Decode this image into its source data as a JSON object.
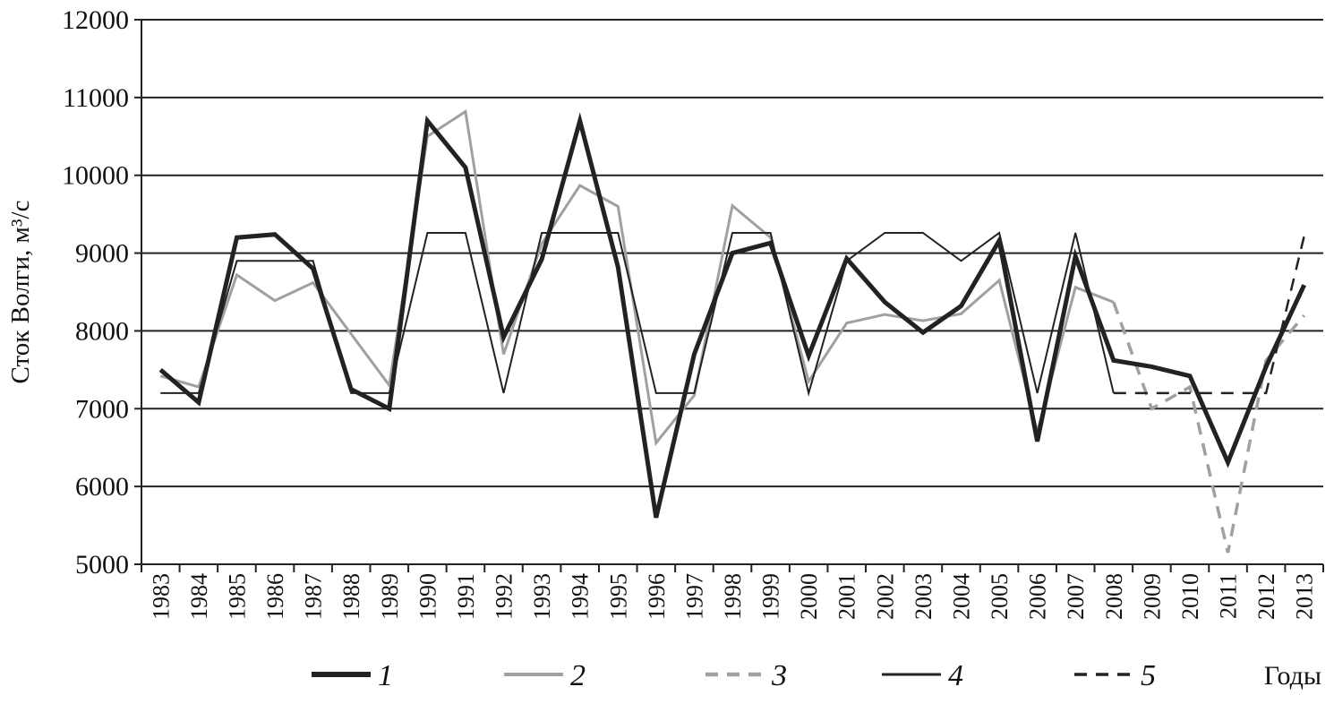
{
  "chart_data": {
    "type": "line",
    "ylabel": "Сток Волги, м³/с",
    "xlabel": "Годы",
    "ylim": [
      5000,
      12000
    ],
    "yticks": [
      "5000",
      "6000",
      "7000",
      "8000",
      "9000",
      "10000",
      "11000",
      "12000"
    ],
    "grid": "horizontal",
    "legend_position": "bottom",
    "categories": [
      "1983",
      "1984",
      "1985",
      "1986",
      "1987",
      "1988",
      "1989",
      "1990",
      "1991",
      "1992",
      "1993",
      "1994",
      "1995",
      "1996",
      "1997",
      "1998",
      "1999",
      "2000",
      "2001",
      "2002",
      "2003",
      "2004",
      "2005",
      "2006",
      "2007",
      "2008",
      "2009",
      "2010",
      "2011",
      "2012",
      "2013"
    ],
    "series": [
      {
        "name": "1",
        "style": "thick-solid",
        "color": "#222222",
        "points": [
          [
            1983,
            7500
          ],
          [
            1984,
            7080
          ],
          [
            1985,
            9200
          ],
          [
            1986,
            9240
          ],
          [
            1987,
            8800
          ],
          [
            1988,
            7250
          ],
          [
            1989,
            7000
          ],
          [
            1990,
            10700
          ],
          [
            1991,
            10100
          ],
          [
            1992,
            7920
          ],
          [
            1993,
            8920
          ],
          [
            1994,
            10700
          ],
          [
            1995,
            8820
          ],
          [
            1996,
            5600
          ],
          [
            1997,
            7700
          ],
          [
            1998,
            9000
          ],
          [
            1999,
            9130
          ],
          [
            2000,
            7680
          ],
          [
            2001,
            8930
          ],
          [
            2002,
            8370
          ],
          [
            2003,
            7980
          ],
          [
            2004,
            8320
          ],
          [
            2005,
            9160
          ],
          [
            2006,
            6580
          ],
          [
            2007,
            8960
          ],
          [
            2008,
            7620
          ],
          [
            2009,
            7540
          ],
          [
            2010,
            7420
          ],
          [
            2011,
            6310
          ],
          [
            2012,
            7540
          ],
          [
            2013,
            8590
          ]
        ]
      },
      {
        "name": "2",
        "style": "gray-solid",
        "color": "#a0a0a0",
        "points": [
          [
            1983,
            7420
          ],
          [
            1984,
            7280
          ],
          [
            1985,
            8720
          ],
          [
            1986,
            8390
          ],
          [
            1987,
            8620
          ],
          [
            1988,
            7960
          ],
          [
            1989,
            7300
          ],
          [
            1990,
            10500
          ],
          [
            1991,
            10820
          ],
          [
            1992,
            7700
          ],
          [
            1993,
            9120
          ],
          [
            1994,
            9870
          ],
          [
            1995,
            9600
          ],
          [
            1996,
            6560
          ],
          [
            1997,
            7170
          ],
          [
            1998,
            9610
          ],
          [
            1999,
            9200
          ],
          [
            2000,
            7350
          ],
          [
            2001,
            8100
          ],
          [
            2002,
            8210
          ],
          [
            2003,
            8130
          ],
          [
            2004,
            8220
          ],
          [
            2005,
            8650
          ],
          [
            2006,
            6700
          ],
          [
            2007,
            8560
          ],
          [
            2008,
            8370
          ]
        ]
      },
      {
        "name": "3",
        "style": "gray-dashed",
        "color": "#a0a0a0",
        "points": [
          [
            2008,
            8370
          ],
          [
            2009,
            7000
          ],
          [
            2010,
            7280
          ],
          [
            2011,
            5150
          ],
          [
            2012,
            7620
          ],
          [
            2013,
            8200
          ]
        ]
      },
      {
        "name": "4",
        "style": "thin-solid",
        "color": "#222222",
        "points": [
          [
            1983,
            7200
          ],
          [
            1984,
            7200
          ],
          [
            1985,
            8900
          ],
          [
            1986,
            8900
          ],
          [
            1987,
            8900
          ],
          [
            1988,
            7200
          ],
          [
            1989,
            7200
          ],
          [
            1990,
            9260
          ],
          [
            1991,
            9260
          ],
          [
            1992,
            7200
          ],
          [
            1993,
            9260
          ],
          [
            1994,
            9260
          ],
          [
            1995,
            9260
          ],
          [
            1996,
            7200
          ],
          [
            1997,
            7200
          ],
          [
            1998,
            9260
          ],
          [
            1999,
            9260
          ],
          [
            2000,
            7200
          ],
          [
            2001,
            8900
          ],
          [
            2002,
            9260
          ],
          [
            2003,
            9260
          ],
          [
            2004,
            8900
          ],
          [
            2005,
            9260
          ],
          [
            2006,
            7200
          ],
          [
            2007,
            9260
          ],
          [
            2008,
            7200
          ]
        ]
      },
      {
        "name": "5",
        "style": "black-dashed",
        "color": "#222222",
        "points": [
          [
            2008,
            7200
          ],
          [
            2009,
            7200
          ],
          [
            2010,
            7200
          ],
          [
            2011,
            7200
          ],
          [
            2012,
            7200
          ],
          [
            2013,
            9220
          ]
        ]
      }
    ]
  }
}
